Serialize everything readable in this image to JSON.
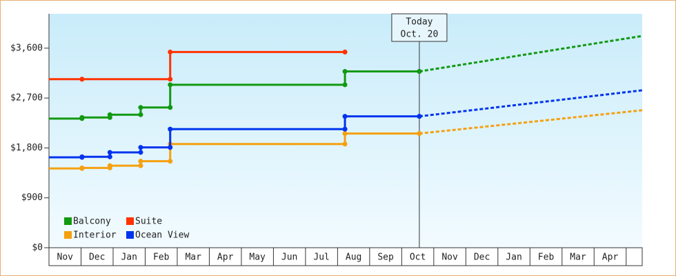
{
  "chart_data": {
    "type": "step-line",
    "xlim": [
      0,
      18.5
    ],
    "ylim": [
      0,
      4220
    ],
    "xticks": [
      {
        "value": 0,
        "label": "Nov"
      },
      {
        "value": 1,
        "label": "Dec"
      },
      {
        "value": 2,
        "label": "Jan"
      },
      {
        "value": 3,
        "label": "Feb"
      },
      {
        "value": 4,
        "label": "Mar"
      },
      {
        "value": 5,
        "label": "Apr"
      },
      {
        "value": 6,
        "label": "May"
      },
      {
        "value": 7,
        "label": "Jun"
      },
      {
        "value": 8,
        "label": "Jul"
      },
      {
        "value": 9,
        "label": "Aug"
      },
      {
        "value": 10,
        "label": "Sep"
      },
      {
        "value": 11,
        "label": "Oct"
      },
      {
        "value": 12,
        "label": "Nov"
      },
      {
        "value": 13,
        "label": "Dec"
      },
      {
        "value": 14,
        "label": "Jan"
      },
      {
        "value": 15,
        "label": "Feb"
      },
      {
        "value": 16,
        "label": "Mar"
      },
      {
        "value": 17,
        "label": "Apr"
      }
    ],
    "yticks": [
      {
        "value": 0,
        "label": "$0"
      },
      {
        "value": 900,
        "label": "$900"
      },
      {
        "value": 1800,
        "label": "$1,800"
      },
      {
        "value": 2700,
        "label": "$2,700"
      },
      {
        "value": 3600,
        "label": "$3,600"
      }
    ],
    "legend": "lower left",
    "series": [
      {
        "name": "Balcony",
        "color": "#119911",
        "x": [
          0,
          1.03,
          1.9,
          2.86,
          3.78,
          9.23,
          11.55
        ],
        "values": [
          2330,
          2350,
          2400,
          2530,
          2940,
          3180,
          3180
        ],
        "forecast_x": [
          11.55,
          18.5
        ],
        "forecast_values": [
          3180,
          3820
        ]
      },
      {
        "name": "Suite",
        "color": "#ff3300",
        "x": [
          0,
          1.03,
          3.78,
          9.23
        ],
        "values": [
          3040,
          3040,
          3530,
          3530
        ]
      },
      {
        "name": "Interior",
        "color": "#f5a00f",
        "x": [
          0,
          1.03,
          1.9,
          2.86,
          3.78,
          9.23,
          11.55
        ],
        "values": [
          1430,
          1440,
          1480,
          1560,
          1870,
          2060,
          2060
        ],
        "forecast_x": [
          11.55,
          18.5
        ],
        "forecast_values": [
          2060,
          2480
        ]
      },
      {
        "name": "Ocean View",
        "color": "#0033ee",
        "x": [
          0,
          1.03,
          1.9,
          2.86,
          3.78,
          9.23,
          11.55
        ],
        "values": [
          1630,
          1640,
          1720,
          1810,
          2140,
          2370,
          2370
        ],
        "forecast_x": [
          11.55,
          18.5
        ],
        "forecast_values": [
          2370,
          2840
        ]
      }
    ],
    "annotation": {
      "x": 11.55,
      "lines": [
        "Today",
        "Oct. 20"
      ]
    }
  }
}
